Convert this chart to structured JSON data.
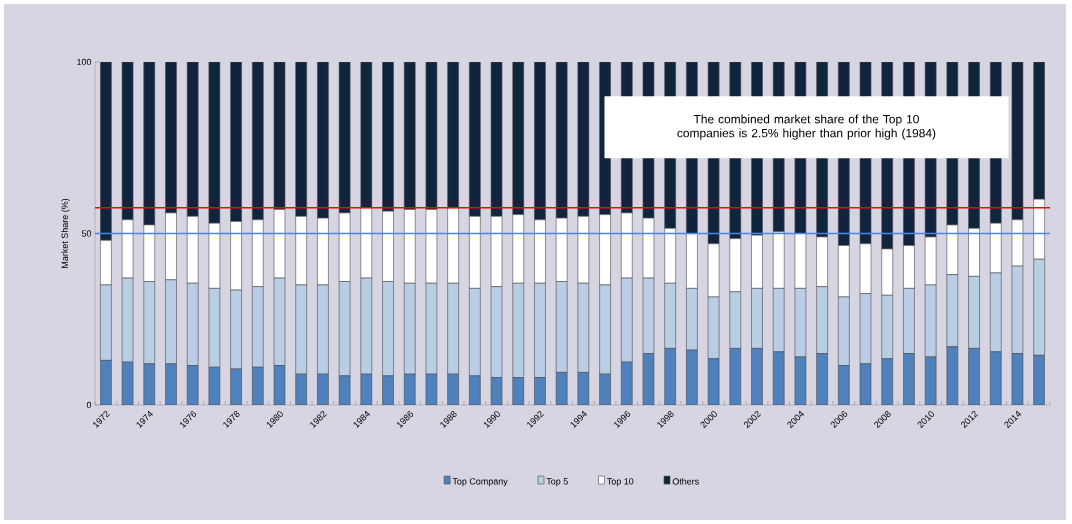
{
  "chart_data": {
    "type": "bar",
    "stacked": true,
    "ylabel": "Market Share (%)",
    "categories": [
      "1972",
      null,
      "1974",
      null,
      "1976",
      null,
      "1978",
      null,
      "1980",
      null,
      "1982",
      null,
      "1984",
      null,
      "1986",
      null,
      "1988",
      null,
      "1990",
      null,
      "1992",
      null,
      "1994",
      null,
      "1996",
      null,
      "1998",
      null,
      "2000",
      null,
      "2002",
      null,
      "2004",
      null,
      "2006",
      null,
      "2008",
      null,
      "2010",
      null,
      "2012",
      null,
      "2014",
      null
    ],
    "series": [
      {
        "name": "Top Company",
        "color": "#4f81bd",
        "values": [
          13,
          12.5,
          12,
          12,
          11.5,
          11,
          10.5,
          11,
          11.5,
          9,
          9,
          8.5,
          9,
          8.5,
          9,
          9,
          9,
          8.5,
          8,
          8,
          8,
          9.5,
          9.5,
          9,
          12.5,
          15,
          16.5,
          16,
          13.5,
          16.5,
          16.5,
          15.5,
          14,
          15,
          11.5,
          12,
          13.5,
          15,
          14,
          17,
          16.5,
          15.5,
          15,
          14.5
        ]
      },
      {
        "name": "Top 5",
        "color": "#b9cde5",
        "values": [
          22,
          24.5,
          24,
          24.5,
          24,
          23,
          23,
          23.5,
          25.5,
          26,
          26,
          27.5,
          28,
          27.5,
          26.5,
          26.5,
          26.5,
          25.5,
          26.5,
          27.5,
          27.5,
          26.5,
          26,
          26,
          24.5,
          22,
          19,
          18,
          18,
          16.5,
          17.5,
          18.5,
          20,
          19.5,
          20,
          20.5,
          18.5,
          19,
          21,
          21,
          21,
          23,
          25.5,
          28
        ]
      },
      {
        "name": "Top 10",
        "color": "#ffffff",
        "values": [
          13,
          17,
          16.5,
          19.5,
          19.5,
          19,
          20,
          19.5,
          20,
          20,
          19.5,
          20,
          20.5,
          20.5,
          21.5,
          21.5,
          22,
          21,
          20.5,
          20,
          18.5,
          18.5,
          19.5,
          20.5,
          19,
          17.5,
          16,
          16,
          15.5,
          15.5,
          15.5,
          16.5,
          16,
          14.5,
          15,
          14.5,
          13.5,
          12.5,
          14,
          14.5,
          14,
          14.5,
          13.5,
          17.5
        ]
      },
      {
        "name": "Others",
        "color": "#10243e",
        "values": [
          52,
          46,
          47.5,
          44,
          45,
          47,
          46.5,
          46,
          43,
          45,
          45.5,
          44,
          42.5,
          43.5,
          43,
          43,
          42.5,
          45,
          45,
          44.5,
          46,
          45.5,
          45,
          44.5,
          44,
          45.5,
          48.5,
          50,
          53,
          51.5,
          50.5,
          49.5,
          50,
          51,
          53.5,
          53,
          54.5,
          53.5,
          51,
          47.5,
          48.5,
          47,
          46,
          40
        ]
      }
    ],
    "ylim": [
      0,
      100
    ],
    "yticks": [
      0,
      50,
      100
    ],
    "legend": "bottom",
    "ref_lines": [
      {
        "axis": "y",
        "value": 50,
        "color": "#4a86e8"
      },
      {
        "axis": "y",
        "value": 57.5,
        "color": "#ff0000"
      }
    ],
    "annotations": [
      "The combined market share of the Top 10 companies is 2.5% higher than prior high (1984)"
    ]
  }
}
